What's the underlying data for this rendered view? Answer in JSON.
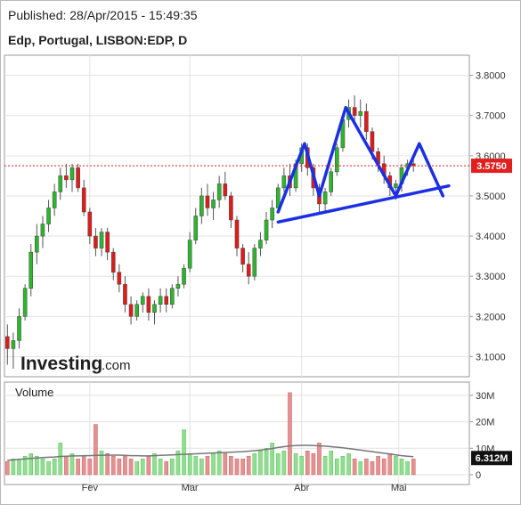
{
  "header": {
    "published": "Published: 28/Apr/2015 - 15:49:35",
    "instrument": "Edp, Portugal, LISBON:EDP, D"
  },
  "branding": {
    "logo_main": "Investing",
    "logo_domain": ".com"
  },
  "colors": {
    "up": "#2db52d",
    "down": "#e01b1b",
    "vol_up": "#8fdf8f",
    "vol_down": "#e69191",
    "pattern": "#1a2fe6",
    "last_price": "#e21f1f",
    "grid": "#e3e3e3"
  },
  "chart_data": [
    {
      "type": "candlestick",
      "title": "Edp, Portugal, LISBON:EDP, D",
      "ylim": [
        3.05,
        3.85
      ],
      "y_ticks": [
        "3.8000",
        "3.7000",
        "3.6000",
        "3.5000",
        "3.4000",
        "3.3000",
        "3.2000",
        "3.1000"
      ],
      "x_ticks": [
        "Fev",
        "Mar",
        "Abr",
        "Mai"
      ],
      "last_price": {
        "value": 3.575,
        "label": "3.5750"
      },
      "candles": [
        [
          3.15,
          3.18,
          3.08,
          3.12
        ],
        [
          3.12,
          3.16,
          3.07,
          3.14
        ],
        [
          3.14,
          3.22,
          3.12,
          3.2
        ],
        [
          3.2,
          3.28,
          3.19,
          3.27
        ],
        [
          3.27,
          3.38,
          3.25,
          3.36
        ],
        [
          3.36,
          3.43,
          3.33,
          3.4
        ],
        [
          3.4,
          3.45,
          3.37,
          3.43
        ],
        [
          3.43,
          3.49,
          3.41,
          3.47
        ],
        [
          3.47,
          3.53,
          3.45,
          3.51
        ],
        [
          3.51,
          3.57,
          3.49,
          3.55
        ],
        [
          3.55,
          3.58,
          3.52,
          3.54
        ],
        [
          3.54,
          3.58,
          3.51,
          3.57
        ],
        [
          3.57,
          3.58,
          3.51,
          3.52
        ],
        [
          3.52,
          3.54,
          3.45,
          3.46
        ],
        [
          3.46,
          3.47,
          3.38,
          3.4
        ],
        [
          3.4,
          3.42,
          3.35,
          3.37
        ],
        [
          3.37,
          3.42,
          3.35,
          3.41
        ],
        [
          3.41,
          3.42,
          3.34,
          3.36
        ],
        [
          3.36,
          3.37,
          3.29,
          3.31
        ],
        [
          3.31,
          3.33,
          3.26,
          3.28
        ],
        [
          3.28,
          3.3,
          3.21,
          3.23
        ],
        [
          3.23,
          3.25,
          3.18,
          3.2
        ],
        [
          3.2,
          3.24,
          3.19,
          3.23
        ],
        [
          3.23,
          3.26,
          3.21,
          3.25
        ],
        [
          3.25,
          3.27,
          3.19,
          3.21
        ],
        [
          3.21,
          3.24,
          3.18,
          3.23
        ],
        [
          3.23,
          3.27,
          3.21,
          3.25
        ],
        [
          3.25,
          3.27,
          3.21,
          3.23
        ],
        [
          3.23,
          3.28,
          3.22,
          3.27
        ],
        [
          3.27,
          3.3,
          3.25,
          3.28
        ],
        [
          3.28,
          3.33,
          3.27,
          3.32
        ],
        [
          3.32,
          3.41,
          3.31,
          3.39
        ],
        [
          3.39,
          3.47,
          3.38,
          3.45
        ],
        [
          3.45,
          3.52,
          3.43,
          3.5
        ],
        [
          3.5,
          3.53,
          3.45,
          3.47
        ],
        [
          3.47,
          3.51,
          3.44,
          3.49
        ],
        [
          3.49,
          3.55,
          3.47,
          3.53
        ],
        [
          3.53,
          3.56,
          3.49,
          3.5
        ],
        [
          3.5,
          3.51,
          3.42,
          3.44
        ],
        [
          3.44,
          3.45,
          3.35,
          3.37
        ],
        [
          3.37,
          3.38,
          3.31,
          3.33
        ],
        [
          3.33,
          3.36,
          3.28,
          3.3
        ],
        [
          3.3,
          3.38,
          3.29,
          3.37
        ],
        [
          3.37,
          3.41,
          3.35,
          3.39
        ],
        [
          3.39,
          3.46,
          3.38,
          3.44
        ],
        [
          3.44,
          3.49,
          3.42,
          3.47
        ],
        [
          3.47,
          3.53,
          3.46,
          3.52
        ],
        [
          3.52,
          3.57,
          3.51,
          3.55
        ],
        [
          3.55,
          3.58,
          3.5,
          3.52
        ],
        [
          3.52,
          3.59,
          3.51,
          3.58
        ],
        [
          3.58,
          3.63,
          3.56,
          3.62
        ],
        [
          3.62,
          3.63,
          3.55,
          3.57
        ],
        [
          3.57,
          3.58,
          3.5,
          3.52
        ],
        [
          3.52,
          3.53,
          3.46,
          3.48
        ],
        [
          3.48,
          3.52,
          3.46,
          3.51
        ],
        [
          3.51,
          3.57,
          3.5,
          3.56
        ],
        [
          3.56,
          3.63,
          3.55,
          3.62
        ],
        [
          3.62,
          3.7,
          3.61,
          3.69
        ],
        [
          3.69,
          3.74,
          3.67,
          3.72
        ],
        [
          3.72,
          3.75,
          3.68,
          3.7
        ],
        [
          3.7,
          3.74,
          3.67,
          3.71
        ],
        [
          3.71,
          3.73,
          3.64,
          3.66
        ],
        [
          3.66,
          3.67,
          3.59,
          3.61
        ],
        [
          3.61,
          3.62,
          3.56,
          3.58
        ],
        [
          3.58,
          3.6,
          3.53,
          3.55
        ],
        [
          3.55,
          3.56,
          3.5,
          3.52
        ],
        [
          3.52,
          3.54,
          3.49,
          3.53
        ],
        [
          3.53,
          3.58,
          3.51,
          3.57
        ],
        [
          3.57,
          3.59,
          3.55,
          3.58
        ],
        [
          3.58,
          3.59,
          3.56,
          3.575
        ]
      ],
      "pattern_lines": [
        {
          "points": [
            [
              46,
              3.46
            ],
            [
              50.5,
              3.63
            ],
            [
              53,
              3.5
            ],
            [
              57.5,
              3.72
            ],
            [
              62.5,
              3.59
            ],
            [
              66,
              3.5
            ],
            [
              70,
              3.63
            ],
            [
              74,
              3.5
            ]
          ]
        },
        {
          "points": [
            [
              46,
              3.435
            ],
            [
              75,
              3.525
            ]
          ]
        }
      ]
    },
    {
      "type": "bar",
      "title": "Volume",
      "ylim": [
        0,
        35
      ],
      "y_ticks": [
        "30M",
        "20M",
        "10M",
        "0"
      ],
      "last_volume": {
        "value": 6.312,
        "label": "6.312M"
      },
      "volumes": [
        5,
        6,
        6,
        7,
        8,
        7,
        6,
        5,
        6,
        12,
        7,
        8,
        6,
        7,
        6,
        19,
        9,
        8,
        7,
        6,
        7,
        6,
        5,
        6,
        7,
        8,
        6,
        5,
        6,
        9,
        17,
        8,
        7,
        6,
        7,
        8,
        9,
        8,
        7,
        6,
        6,
        7,
        8,
        9,
        10,
        12,
        8,
        9,
        31,
        8,
        7,
        9,
        8,
        12,
        7,
        9,
        6,
        7,
        8,
        6,
        5,
        6,
        5,
        7,
        6,
        8,
        7,
        6,
        5,
        6
      ],
      "moving_average": [
        5.5,
        5.6,
        5.8,
        6,
        6.2,
        6.3,
        6.5,
        6.6,
        6.7,
        6.9,
        7,
        7.1,
        7.1,
        7.2,
        7.2,
        7.3,
        7.3,
        7.4,
        7.4,
        7.4,
        7.3,
        7.2,
        7.2,
        7.1,
        7.1,
        7.2,
        7.3,
        7.4,
        7.5,
        7.6,
        7.7,
        7.8,
        7.9,
        8,
        8.1,
        8.2,
        8.3,
        8.4,
        8.5,
        8.6,
        8.7,
        8.9,
        9.1,
        9.3,
        9.6,
        9.9,
        10.3,
        10.6,
        10.9,
        11,
        11.1,
        11.1,
        11,
        10.9,
        10.8,
        10.6,
        10.4,
        10.2,
        9.9,
        9.6,
        9.3,
        9,
        8.7,
        8.4,
        8.1,
        7.8,
        7.5,
        7.2,
        7,
        6.8
      ]
    }
  ]
}
